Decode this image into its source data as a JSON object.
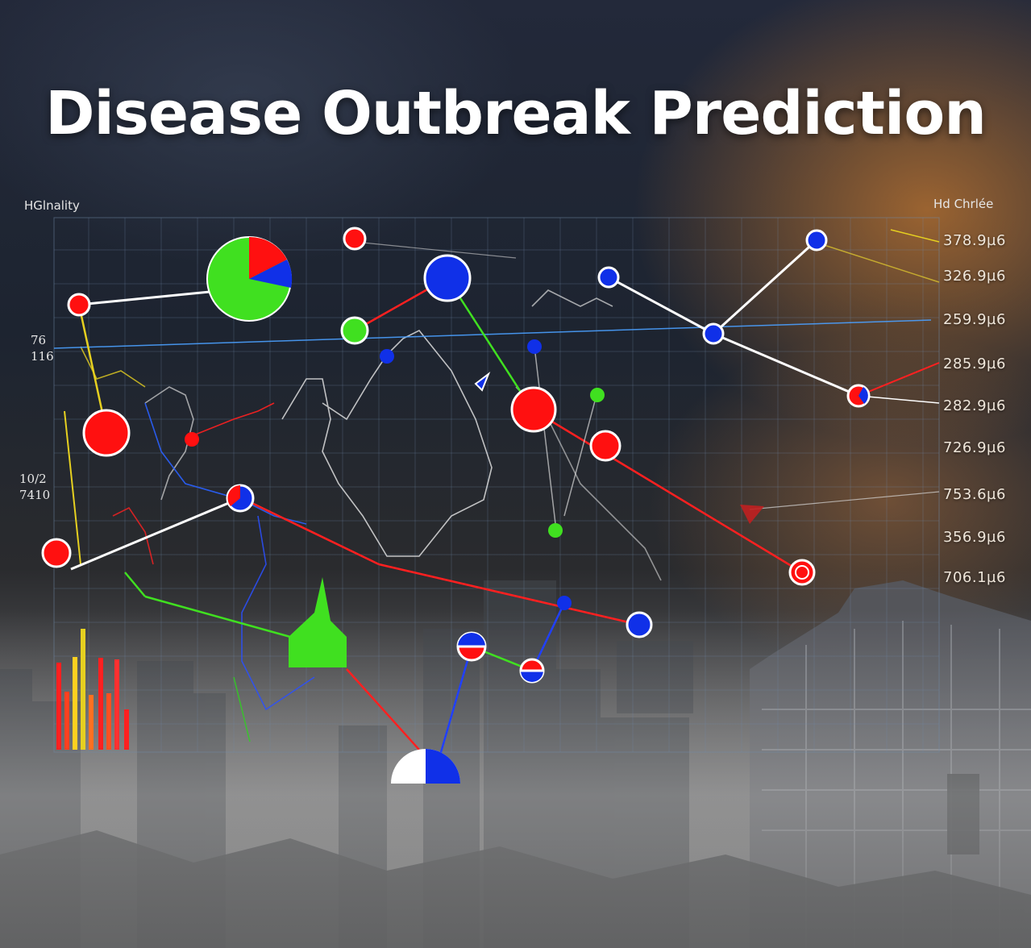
{
  "title": "Disease Outbreak Prediction",
  "left_corner_label": "HGlnality",
  "right_corner_label": "Hd Chrlée",
  "left_ticks": [
    {
      "line1": "76",
      "line2": "116"
    },
    {
      "line1": "10/2",
      "line2": "7410"
    }
  ],
  "right_ticks": [
    "378.9µ6",
    "326.9µ6",
    "259.9µ6",
    "285.9µ6",
    "282.9µ6",
    "726.9µ6",
    "753.6µ6",
    "356.9µ6",
    "706.1µ6"
  ],
  "colors": {
    "red": "#ff1010",
    "blue": "#1030e8",
    "green": "#30e020",
    "white": "#ffffff",
    "yellow": "#e6d020",
    "grid": "#6f8aa8"
  },
  "icons": [
    "pie-chart-icon",
    "bar-chart-icon",
    "outbreak-marker-icon"
  ]
}
